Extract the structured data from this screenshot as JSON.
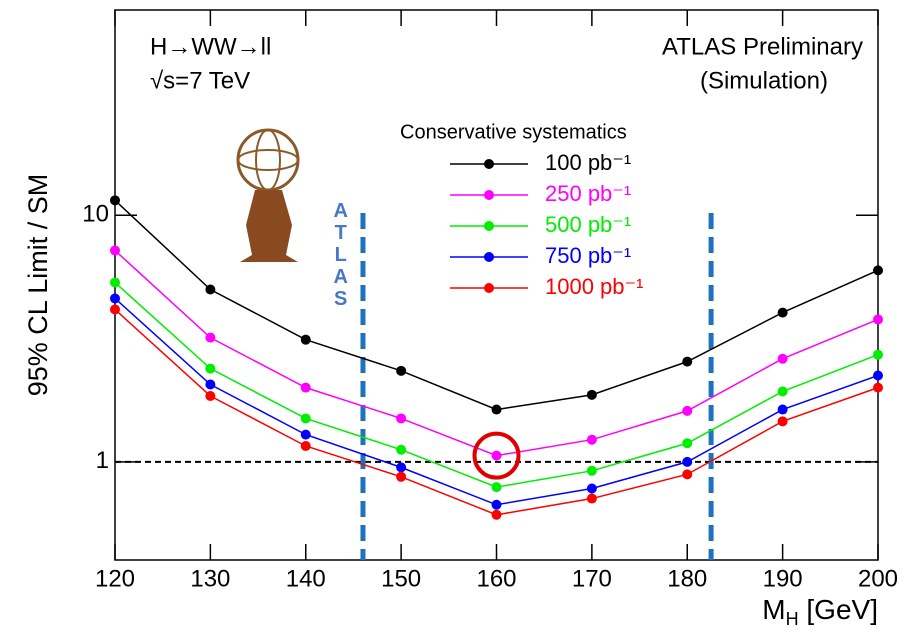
{
  "chart_data": {
    "type": "line",
    "x_label": [
      "M",
      "H",
      " [GeV]"
    ],
    "y_label": "95% CL Limit / SM",
    "annotations": {
      "process": "H→WW→ll",
      "energy": "√s=7 TeV",
      "experiment": "ATLAS Preliminary",
      "note": "(Simulation)",
      "logo": "ATLAS"
    },
    "legend_title": "Conservative systematics",
    "x": [
      120,
      130,
      140,
      150,
      160,
      170,
      180,
      190,
      200
    ],
    "series": [
      {
        "name": "100 pb⁻¹",
        "color": "#000000",
        "values": [
          11.5,
          5.0,
          3.13,
          2.34,
          1.63,
          1.87,
          2.55,
          4.03,
          5.98
        ]
      },
      {
        "name": "250 pb⁻¹",
        "color": "#ff00ff",
        "values": [
          7.2,
          3.19,
          2.0,
          1.5,
          1.06,
          1.23,
          1.61,
          2.62,
          3.78
        ]
      },
      {
        "name": "500 pb⁻¹",
        "color": "#00ee00",
        "values": [
          5.34,
          2.39,
          1.5,
          1.12,
          0.79,
          0.92,
          1.19,
          1.93,
          2.72
        ]
      },
      {
        "name": "750 pb⁻¹",
        "color": "#0000ff",
        "values": [
          4.6,
          2.06,
          1.29,
          0.95,
          0.67,
          0.78,
          1.0,
          1.63,
          2.24
        ]
      },
      {
        "name": "1000 pb⁻¹",
        "color": "#ff0000",
        "values": [
          4.15,
          1.85,
          1.16,
          0.87,
          0.61,
          0.71,
          0.89,
          1.46,
          2.0
        ]
      }
    ],
    "xlim": [
      120,
      200
    ],
    "xticks": [
      120,
      130,
      140,
      150,
      160,
      170,
      180,
      190,
      200
    ],
    "ylim": [
      0.4,
      68
    ],
    "yticks": [
      1,
      10
    ],
    "y_scale": "log",
    "reference_line": {
      "y": 1,
      "color": "#000000"
    },
    "window_lines": {
      "x": [
        146,
        182.5
      ],
      "color": "#1e73be"
    },
    "highlight": {
      "x": 160,
      "y": 1.06,
      "color": "#e00000"
    }
  }
}
